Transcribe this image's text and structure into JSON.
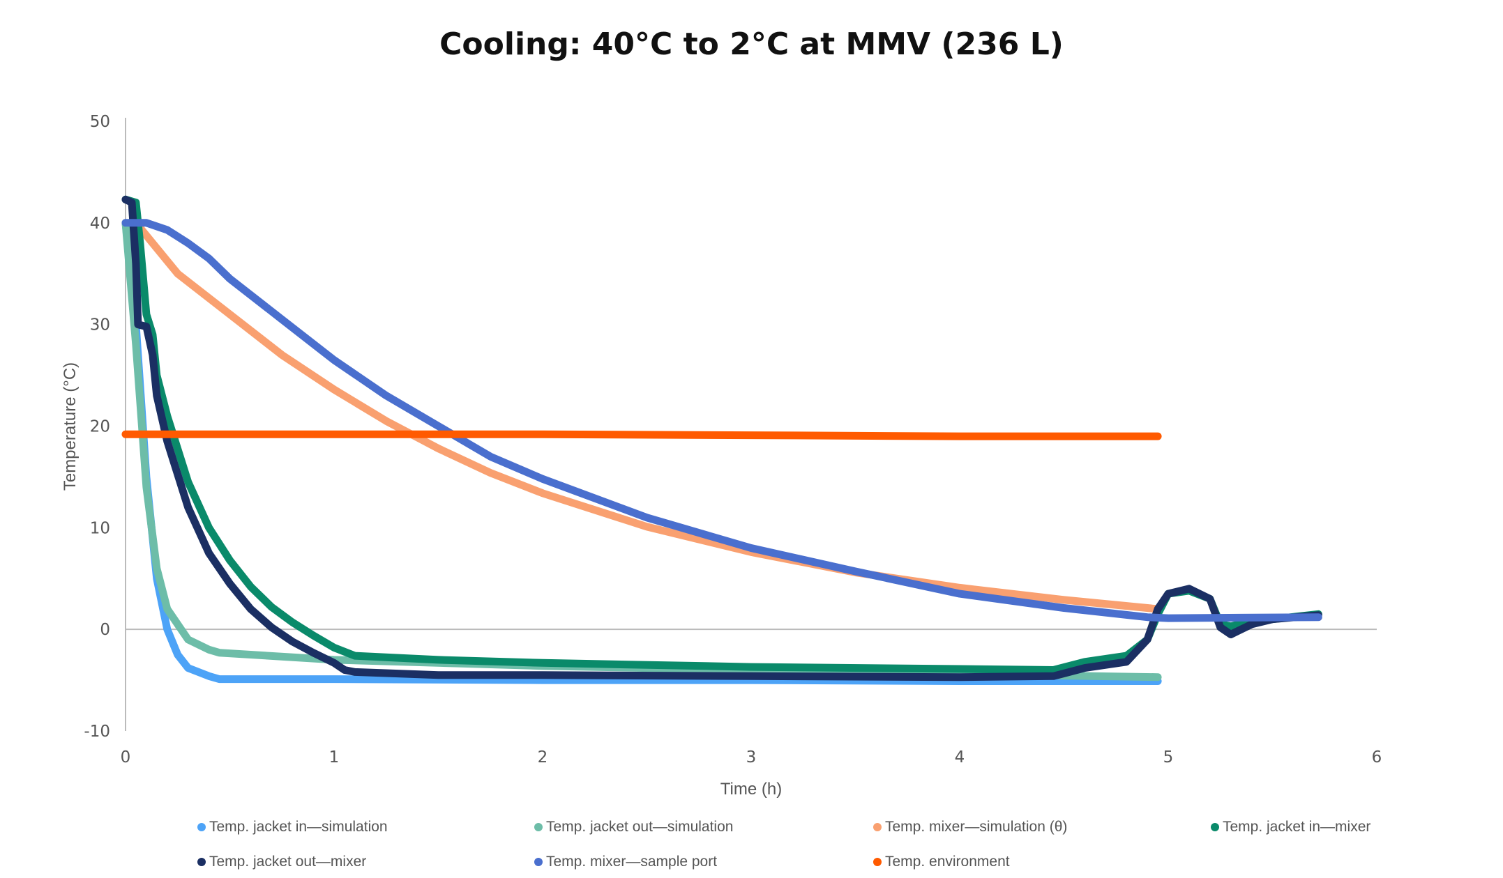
{
  "chart_data": {
    "type": "scatter",
    "title": "Cooling: 40°C to 2°C at MMV (236 L)",
    "xlabel": "Time (h)",
    "ylabel": "Temperature (°C)",
    "xlim": [
      0,
      6
    ],
    "ylim": [
      -10,
      50
    ],
    "xticks": [
      "0",
      "1",
      "2",
      "3",
      "4",
      "5",
      "6"
    ],
    "yticks": [
      "-10",
      "0",
      "10",
      "20",
      "30",
      "40",
      "50"
    ],
    "grid": false,
    "legend": "bottom",
    "series": [
      {
        "name": "Temp. jacket in—simulation",
        "color": "#4da3f7",
        "points": [
          [
            0,
            40
          ],
          [
            0.05,
            30
          ],
          [
            0.1,
            15
          ],
          [
            0.15,
            5
          ],
          [
            0.2,
            0
          ],
          [
            0.25,
            -2.5
          ],
          [
            0.3,
            -3.8
          ],
          [
            0.4,
            -4.6
          ],
          [
            0.45,
            -4.9
          ],
          [
            1,
            -4.9
          ],
          [
            2,
            -5
          ],
          [
            3,
            -5
          ],
          [
            4,
            -5.1
          ],
          [
            4.95,
            -5.1
          ]
        ]
      },
      {
        "name": "Temp. jacket out—simulation",
        "color": "#6dbda8",
        "points": [
          [
            0,
            40
          ],
          [
            0.05,
            28
          ],
          [
            0.1,
            14
          ],
          [
            0.15,
            6
          ],
          [
            0.2,
            2
          ],
          [
            0.3,
            -1
          ],
          [
            0.4,
            -2
          ],
          [
            0.45,
            -2.3
          ],
          [
            1,
            -3
          ],
          [
            2,
            -3.6
          ],
          [
            3,
            -4
          ],
          [
            4,
            -4.4
          ],
          [
            4.95,
            -4.7
          ]
        ]
      },
      {
        "name": "Temp. mixer—simulation (θ)",
        "color": "#f9a070",
        "points": [
          [
            0.05,
            40
          ],
          [
            0.25,
            35
          ],
          [
            0.5,
            31
          ],
          [
            0.75,
            27
          ],
          [
            1,
            23.6
          ],
          [
            1.25,
            20.5
          ],
          [
            1.5,
            17.8
          ],
          [
            1.75,
            15.4
          ],
          [
            2,
            13.4
          ],
          [
            2.5,
            10.1
          ],
          [
            3,
            7.6
          ],
          [
            3.5,
            5.6
          ],
          [
            4,
            4.1
          ],
          [
            4.5,
            2.9
          ],
          [
            4.95,
            2
          ]
        ]
      },
      {
        "name": "Temp. jacket in—mixer",
        "color": "#0a8a6a",
        "points": [
          [
            0,
            42.3
          ],
          [
            0.05,
            42
          ],
          [
            0.07,
            38
          ],
          [
            0.1,
            31
          ],
          [
            0.13,
            29
          ],
          [
            0.15,
            25
          ],
          [
            0.2,
            21
          ],
          [
            0.3,
            14.5
          ],
          [
            0.4,
            10
          ],
          [
            0.5,
            6.8
          ],
          [
            0.6,
            4.2
          ],
          [
            0.7,
            2.2
          ],
          [
            0.8,
            0.7
          ],
          [
            0.9,
            -0.6
          ],
          [
            1,
            -1.8
          ],
          [
            1.1,
            -2.6
          ],
          [
            1.5,
            -3
          ],
          [
            2,
            -3.3
          ],
          [
            3,
            -3.7
          ],
          [
            4,
            -3.9
          ],
          [
            4.45,
            -4
          ],
          [
            4.6,
            -3.2
          ],
          [
            4.8,
            -2.6
          ],
          [
            4.9,
            -1
          ],
          [
            4.95,
            1.5
          ],
          [
            5,
            3.5
          ],
          [
            5.1,
            3.8
          ],
          [
            5.2,
            3
          ],
          [
            5.25,
            0.5
          ],
          [
            5.3,
            0.3
          ],
          [
            5.4,
            0.8
          ],
          [
            5.5,
            1
          ],
          [
            5.72,
            1.5
          ]
        ]
      },
      {
        "name": "Temp. jacket out—mixer",
        "color": "#1b2f63",
        "points": [
          [
            0,
            42.3
          ],
          [
            0.03,
            42
          ],
          [
            0.05,
            36
          ],
          [
            0.06,
            30
          ],
          [
            0.1,
            29.8
          ],
          [
            0.13,
            27
          ],
          [
            0.15,
            23
          ],
          [
            0.2,
            18.5
          ],
          [
            0.3,
            12
          ],
          [
            0.4,
            7.5
          ],
          [
            0.5,
            4.5
          ],
          [
            0.6,
            2
          ],
          [
            0.7,
            0.2
          ],
          [
            0.8,
            -1.2
          ],
          [
            0.9,
            -2.3
          ],
          [
            1,
            -3.3
          ],
          [
            1.05,
            -4
          ],
          [
            1.1,
            -4.2
          ],
          [
            1.5,
            -4.5
          ],
          [
            2,
            -4.5
          ],
          [
            3,
            -4.6
          ],
          [
            4,
            -4.7
          ],
          [
            4.45,
            -4.6
          ],
          [
            4.6,
            -3.8
          ],
          [
            4.8,
            -3.2
          ],
          [
            4.9,
            -1
          ],
          [
            4.95,
            2
          ],
          [
            5,
            3.5
          ],
          [
            5.1,
            4
          ],
          [
            5.2,
            3
          ],
          [
            5.25,
            0.2
          ],
          [
            5.3,
            -0.5
          ],
          [
            5.4,
            0.5
          ],
          [
            5.5,
            1
          ],
          [
            5.72,
            1.4
          ]
        ]
      },
      {
        "name": "Temp. mixer—sample port",
        "color": "#4a6fce",
        "points": [
          [
            0,
            40
          ],
          [
            0.1,
            40
          ],
          [
            0.2,
            39.3
          ],
          [
            0.3,
            38
          ],
          [
            0.4,
            36.5
          ],
          [
            0.5,
            34.5
          ],
          [
            0.75,
            30.5
          ],
          [
            1,
            26.5
          ],
          [
            1.25,
            23
          ],
          [
            1.5,
            20
          ],
          [
            1.75,
            17
          ],
          [
            2,
            14.8
          ],
          [
            2.5,
            11
          ],
          [
            3,
            8
          ],
          [
            3.5,
            5.7
          ],
          [
            4,
            3.5
          ],
          [
            4.5,
            2.1
          ],
          [
            4.9,
            1.2
          ],
          [
            5,
            1.1
          ],
          [
            5.72,
            1.2
          ]
        ]
      },
      {
        "name": "Temp. environment",
        "color": "#ff5a00",
        "points": [
          [
            0,
            19.2
          ],
          [
            1,
            19.2
          ],
          [
            2,
            19.2
          ],
          [
            3,
            19.1
          ],
          [
            4,
            19
          ],
          [
            4.95,
            19
          ]
        ]
      }
    ]
  }
}
